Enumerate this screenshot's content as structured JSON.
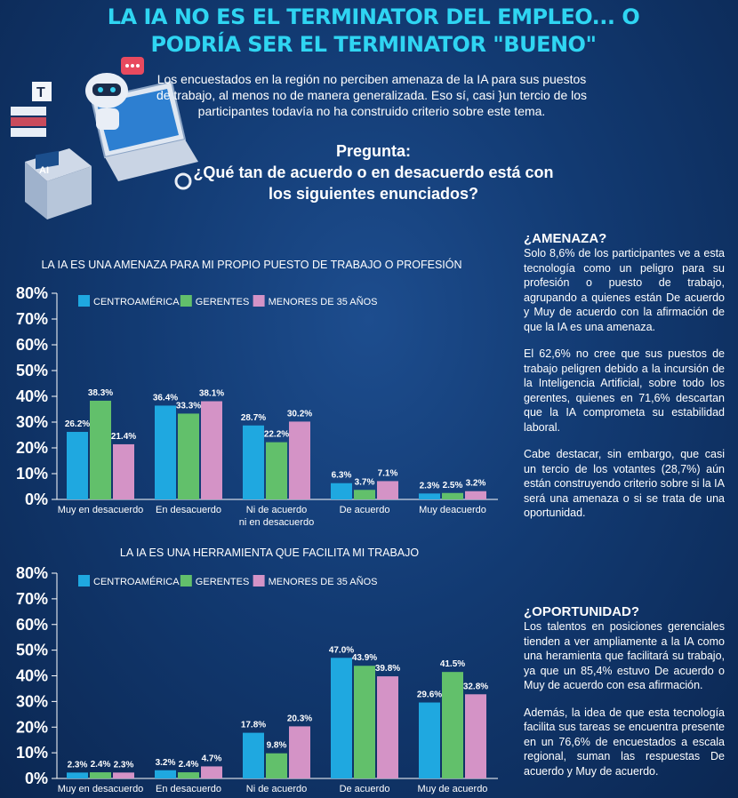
{
  "header": {
    "title": "LA IA NO ES EL TERMINATOR DEL EMPLEO... O PODRÍA SER EL TERMINATOR \"BUENO\"",
    "intro": "Los encuestados en la región no perciben amenaza de la IA para sus puestos de trabajo, al menos no de manera generalizada. Eso sí, casi }un tercio de los participantes todavía no ha construido criterio sobre este tema.",
    "question_label": "Pregunta:",
    "question_text": "¿Qué tan de acuerdo o en desacuerdo está con los siguientes enunciados?"
  },
  "illustration": {
    "ai_label": "AI",
    "t_label": "T"
  },
  "colors": {
    "centroamerica": "#1fa8e0",
    "gerentes": "#62c06b",
    "menores": "#d493c6",
    "title": "#2fd5f2"
  },
  "sidebar": {
    "amenaza": {
      "heading": "¿AMENAZA?",
      "p1": "Solo 8,6% de los participantes ve a esta tecnología como un peligro para su profesión o puesto de trabajo, agrupando a quienes están De acuerdo y Muy de acuerdo con la afirmación de que la IA es una amenaza.",
      "p2": "El 62,6% no cree que sus puestos de trabajo peligren debido a la incursión de la Inteligencia Artificial, sobre todo los gerentes, quienes en 71,6% descartan que la IA comprometa su estabilidad laboral.",
      "p3": "Cabe destacar, sin embargo, que casi un tercio de los votantes (28,7%) aún están construyendo criterio sobre si la IA será una amenaza o si se trata de una oportunidad."
    },
    "oportunidad": {
      "heading": "¿OPORTUNIDAD?",
      "p1": "Los talentos en posiciones gerenciales tienden a ver ampliamente a la IA como una heramienta que facilitará su trabajo, ya que un 85,4% estuvo De acuerdo o Muy de acuerdo con esa afirmación.",
      "p2": "Además, la idea de que esta tecnología facilita sus tareas se encuentra presente en un 76,6% de encuestados a escala regional, suman las respuestas De acuerdo y Muy de acuerdo."
    }
  },
  "chart_data": [
    {
      "type": "bar",
      "title": "LA IA ES UNA AMENAZA PARA  MI PROPIO PUESTO DE TRABAJO O PROFESIÓN",
      "categories": [
        "Muy en desacuerdo",
        "En desacuerdo",
        "Ni de acuerdo\nni en desacuerdo",
        "De acuerdo",
        "Muy deacuerdo"
      ],
      "series": [
        {
          "name": "CENTROAMÉRICA",
          "values": [
            26.2,
            36.4,
            28.7,
            6.3,
            2.3
          ],
          "labels": [
            "26.2%",
            "36.4%",
            "28.7%",
            "6.3%",
            "2.3%"
          ]
        },
        {
          "name": "GERENTES",
          "values": [
            38.3,
            33.3,
            22.2,
            3.7,
            2.5
          ],
          "labels": [
            "38.3%",
            "33.3%",
            "22.2%",
            "3.7%",
            "2.5%"
          ]
        },
        {
          "name": "MENORES DE 35 AÑOS",
          "values": [
            21.4,
            38.1,
            30.2,
            7.1,
            3.2
          ],
          "labels": [
            "21.4%",
            "38.1%",
            "30.2%",
            "7.1%",
            "3.2%"
          ]
        }
      ],
      "yticks": [
        "0%",
        "10%",
        "20%",
        "30%",
        "40%",
        "50%",
        "60%",
        "70%",
        "80%"
      ],
      "ylim": [
        0,
        80
      ],
      "legend": "top-left"
    },
    {
      "type": "bar",
      "title": "LA IA ES UNA HERRAMIENTA QUE FACILITA MI TRABAJO",
      "categories": [
        "Muy en desacuerdo",
        "En desacuerdo",
        "Ni de acuerdo",
        "De acuerdo",
        "Muy de acuerdo"
      ],
      "series": [
        {
          "name": "CENTROAMÉRICA",
          "values": [
            2.3,
            3.2,
            17.8,
            47.0,
            29.6
          ],
          "labels": [
            "2.3%",
            "3.2%",
            "17.8%",
            "47.0%",
            "29.6%"
          ]
        },
        {
          "name": "GERENTES",
          "values": [
            2.4,
            2.4,
            9.8,
            43.9,
            41.5
          ],
          "labels": [
            "2.4%",
            "2.4%",
            "9.8%",
            "43.9%",
            "41.5%"
          ]
        },
        {
          "name": "MENORES DE 35 AÑOS",
          "values": [
            2.3,
            4.7,
            20.3,
            39.8,
            32.8
          ],
          "labels": [
            "2.3%",
            "4.7%",
            "20.3%",
            "39.8%",
            "32.8%"
          ]
        }
      ],
      "yticks": [
        "0%",
        "10%",
        "20%",
        "30%",
        "40%",
        "50%",
        "60%",
        "70%",
        "80%"
      ],
      "ylim": [
        0,
        80
      ],
      "legend": "top-left"
    }
  ]
}
